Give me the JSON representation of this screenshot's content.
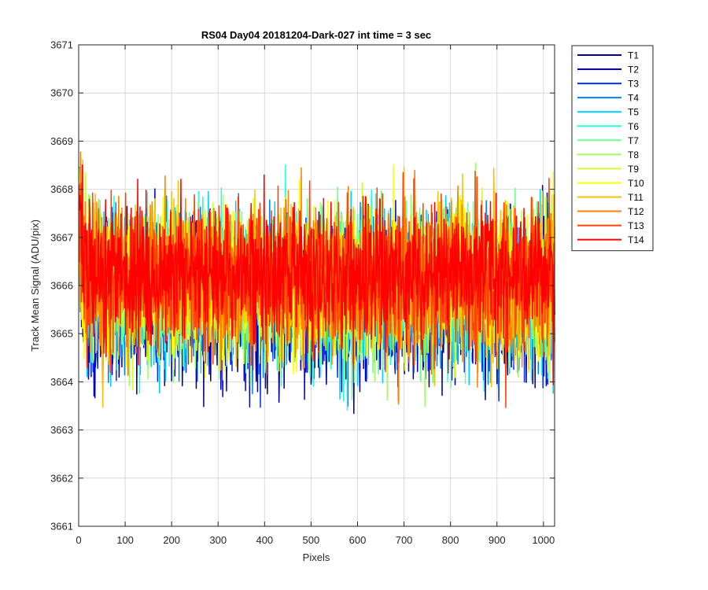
{
  "chart_data": {
    "type": "line",
    "title": "RS04 Day04 20181204-Dark-027 int time = 3 sec",
    "xlabel": "Pixels",
    "ylabel": "Track Mean Signal (ADU/pix)",
    "xlim": [
      0,
      1024
    ],
    "ylim": [
      3661,
      3671
    ],
    "xticks": [
      0,
      100,
      200,
      300,
      400,
      500,
      600,
      700,
      800,
      900,
      1000
    ],
    "yticks": [
      3661,
      3662,
      3663,
      3664,
      3665,
      3666,
      3667,
      3668,
      3669,
      3670,
      3671
    ],
    "x_start": 1,
    "x_end": 1024,
    "grid": true,
    "legend_position": "outside top-right",
    "series": [
      {
        "name": "T1",
        "color": "#00008f",
        "mean": 3665.6,
        "noise_sd": 0.75,
        "seed": 11
      },
      {
        "name": "T2",
        "color": "#0000df",
        "mean": 3665.7,
        "noise_sd": 0.75,
        "seed": 23
      },
      {
        "name": "T3",
        "color": "#0030ff",
        "mean": 3665.8,
        "noise_sd": 0.75,
        "seed": 37
      },
      {
        "name": "T4",
        "color": "#0080ff",
        "mean": 3665.9,
        "noise_sd": 0.75,
        "seed": 41
      },
      {
        "name": "T5",
        "color": "#00cfff",
        "mean": 3665.9,
        "noise_sd": 0.75,
        "seed": 53
      },
      {
        "name": "T6",
        "color": "#20ffdf",
        "mean": 3665.95,
        "noise_sd": 0.75,
        "seed": 67
      },
      {
        "name": "T7",
        "color": "#70ff8f",
        "mean": 3666.0,
        "noise_sd": 0.75,
        "seed": 71
      },
      {
        "name": "T8",
        "color": "#a0ff60",
        "mean": 3666.0,
        "noise_sd": 0.75,
        "seed": 83
      },
      {
        "name": "T9",
        "color": "#cfff30",
        "mean": 3666.05,
        "noise_sd": 0.75,
        "seed": 97
      },
      {
        "name": "T10",
        "color": "#ffff00",
        "mean": 3666.1,
        "noise_sd": 0.75,
        "seed": 101
      },
      {
        "name": "T11",
        "color": "#ffbf00",
        "mean": 3666.1,
        "noise_sd": 0.75,
        "seed": 113
      },
      {
        "name": "T12",
        "color": "#ff8000",
        "mean": 3666.15,
        "noise_sd": 0.75,
        "seed": 127
      },
      {
        "name": "T13",
        "color": "#ff4000",
        "mean": 3666.15,
        "noise_sd": 0.75,
        "seed": 131
      },
      {
        "name": "T14",
        "color": "#ff0000",
        "mean": 3666.2,
        "noise_sd": 0.7,
        "seed": 149
      }
    ]
  }
}
